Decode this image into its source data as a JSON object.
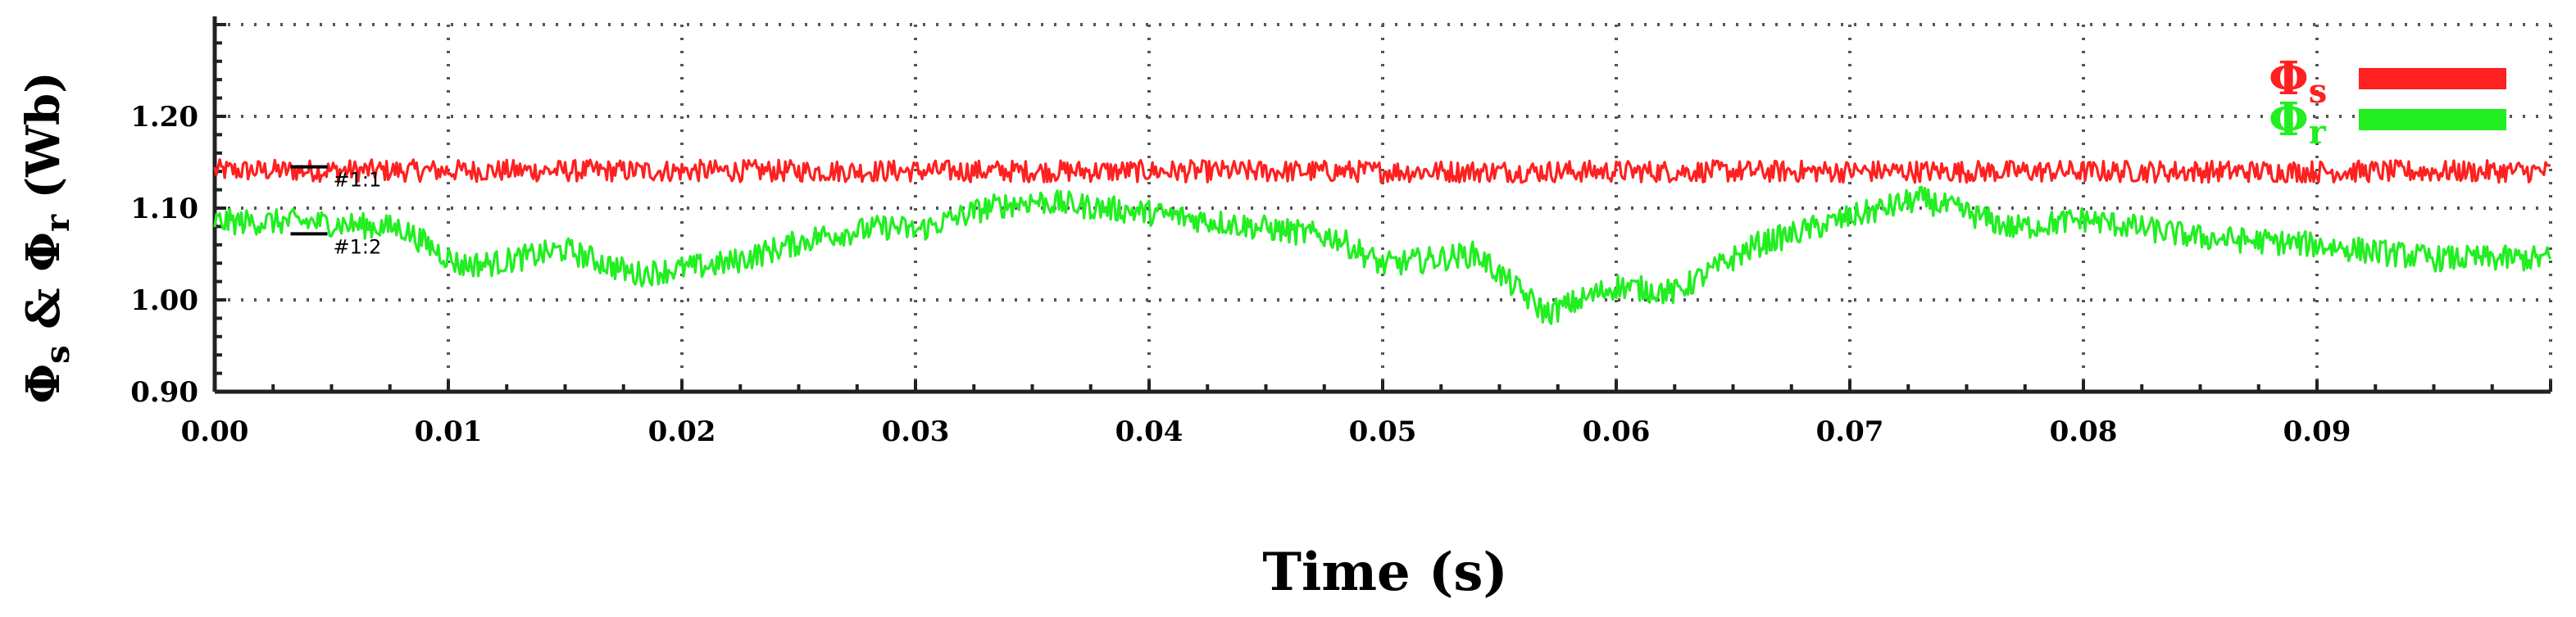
{
  "chart_data": {
    "type": "line",
    "xlabel": "Time (s)",
    "ylabel": {
      "parts": [
        {
          "text": "Φ"
        },
        {
          "text": "s",
          "sub": true
        },
        {
          "text": " & Φ"
        },
        {
          "text": "r",
          "sub": true
        },
        {
          "text": " (Wb)"
        }
      ]
    },
    "xlim": [
      0.0,
      0.1
    ],
    "ylim": [
      0.9,
      1.3
    ],
    "x_ticks": [
      0.0,
      0.01,
      0.02,
      0.03,
      0.04,
      0.05,
      0.06,
      0.07,
      0.08,
      0.09
    ],
    "x_tick_labels": [
      "0.00",
      "0.01",
      "0.02",
      "0.03",
      "0.04",
      "0.05",
      "0.06",
      "0.07",
      "0.08",
      "0.09"
    ],
    "y_ticks": [
      0.9,
      1.0,
      1.1,
      1.2
    ],
    "y_tick_labels": [
      "0.90",
      "1.00",
      "1.10",
      "1.20"
    ],
    "grid": true,
    "legend_position": "top-right",
    "series": [
      {
        "name": "Φs",
        "name_main": "Φ",
        "name_sub": "s",
        "color": "#ff2020",
        "noise": 0.012,
        "points": [
          [
            0.0,
            1.141
          ],
          [
            0.05,
            1.14
          ],
          [
            0.1,
            1.14
          ]
        ]
      },
      {
        "name": "Φr",
        "name_main": "Φ",
        "name_sub": "r",
        "color": "#22ee22",
        "noise": 0.014,
        "points": [
          [
            0.0,
            1.085
          ],
          [
            0.004,
            1.085
          ],
          [
            0.008,
            1.078
          ],
          [
            0.0105,
            1.038
          ],
          [
            0.012,
            1.04
          ],
          [
            0.015,
            1.055
          ],
          [
            0.018,
            1.028
          ],
          [
            0.022,
            1.04
          ],
          [
            0.026,
            1.07
          ],
          [
            0.029,
            1.08
          ],
          [
            0.03,
            1.075
          ],
          [
            0.033,
            1.1
          ],
          [
            0.035,
            1.108
          ],
          [
            0.04,
            1.095
          ],
          [
            0.045,
            1.078
          ],
          [
            0.048,
            1.068
          ],
          [
            0.05,
            1.038
          ],
          [
            0.054,
            1.05
          ],
          [
            0.057,
            0.985
          ],
          [
            0.06,
            1.015
          ],
          [
            0.0625,
            1.008
          ],
          [
            0.066,
            1.06
          ],
          [
            0.07,
            1.09
          ],
          [
            0.073,
            1.11
          ],
          [
            0.075,
            1.095
          ],
          [
            0.077,
            1.078
          ],
          [
            0.08,
            1.088
          ],
          [
            0.085,
            1.068
          ],
          [
            0.09,
            1.06
          ],
          [
            0.095,
            1.045
          ],
          [
            0.1,
            1.045
          ]
        ]
      }
    ],
    "annotations": [
      {
        "label": "#1:1",
        "x": 0.005,
        "y": 1.145
      },
      {
        "label": "#1:2",
        "x": 0.005,
        "y": 1.072
      }
    ]
  }
}
